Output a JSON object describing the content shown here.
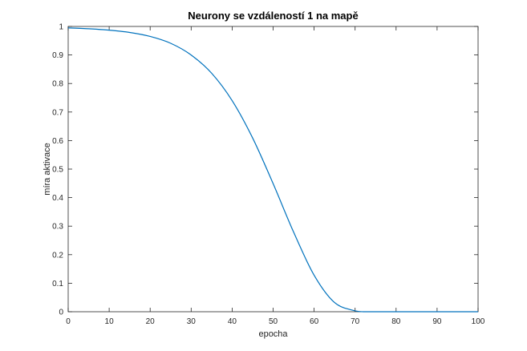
{
  "chart_data": {
    "type": "line",
    "title": "Neurony se vzdáleností 1 na mapě",
    "xlabel": "epocha",
    "ylabel": "míra aktivace",
    "xlim": [
      0,
      100
    ],
    "ylim": [
      0,
      1
    ],
    "x_ticks": [
      "0",
      "10",
      "20",
      "30",
      "40",
      "50",
      "60",
      "70",
      "80",
      "90",
      "100"
    ],
    "y_ticks": [
      "0",
      "0.1",
      "0.2",
      "0.3",
      "0.4",
      "0.5",
      "0.6",
      "0.7",
      "0.8",
      "0.9",
      "1"
    ],
    "grid": false,
    "line_color": "#0072BD",
    "series": [
      {
        "x": [
          0,
          5,
          10,
          15,
          20,
          25,
          30,
          35,
          40,
          45,
          50,
          55,
          60,
          65,
          70,
          72,
          75,
          80,
          85,
          90,
          95,
          100
        ],
        "values": [
          0.995,
          0.992,
          0.987,
          0.979,
          0.965,
          0.941,
          0.9,
          0.836,
          0.74,
          0.609,
          0.449,
          0.279,
          0.128,
          0.032,
          0.003,
          0.0,
          0.0,
          0.0,
          0.0,
          0.0,
          0.0,
          0.0
        ]
      }
    ]
  }
}
